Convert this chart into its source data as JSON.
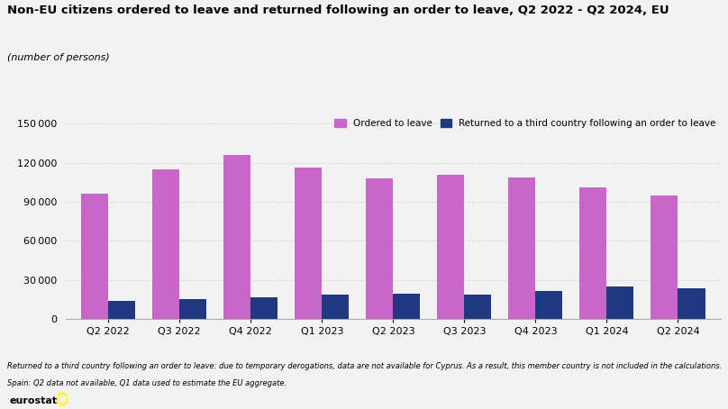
{
  "title": "Non-EU citizens ordered to leave and returned following an order to leave, Q2 2022 - Q2 2024, EU",
  "subtitle": "(number of persons)",
  "categories": [
    "Q2 2022",
    "Q3 2022",
    "Q4 2022",
    "Q1 2023",
    "Q2 2023",
    "Q3 2023",
    "Q4 2023",
    "Q1 2024",
    "Q2 2024"
  ],
  "ordered_to_leave": [
    96000,
    115000,
    126000,
    116000,
    108000,
    111000,
    109000,
    101000,
    95000
  ],
  "returned": [
    14000,
    15500,
    17000,
    19000,
    19500,
    18500,
    21500,
    25000,
    23500
  ],
  "bar_color_ordered": "#c966c9",
  "bar_color_returned": "#1f3880",
  "legend_label_ordered": "Ordered to leave",
  "legend_label_returned": "Returned to a third country following an order to leave",
  "yticks": [
    0,
    30000,
    60000,
    90000,
    120000,
    150000
  ],
  "footnote1": "Returned to a third country following an order to leave: due to temporary derogations, data are not available for Cyprus. As a result, this member country is not included in the calculations.",
  "footnote2": "Spain: Q2 data not available, Q1 data used to estimate the EU aggregate.",
  "background_color": "#f2f2f2",
  "grid_color": "#cccccc",
  "bar_width": 0.38
}
